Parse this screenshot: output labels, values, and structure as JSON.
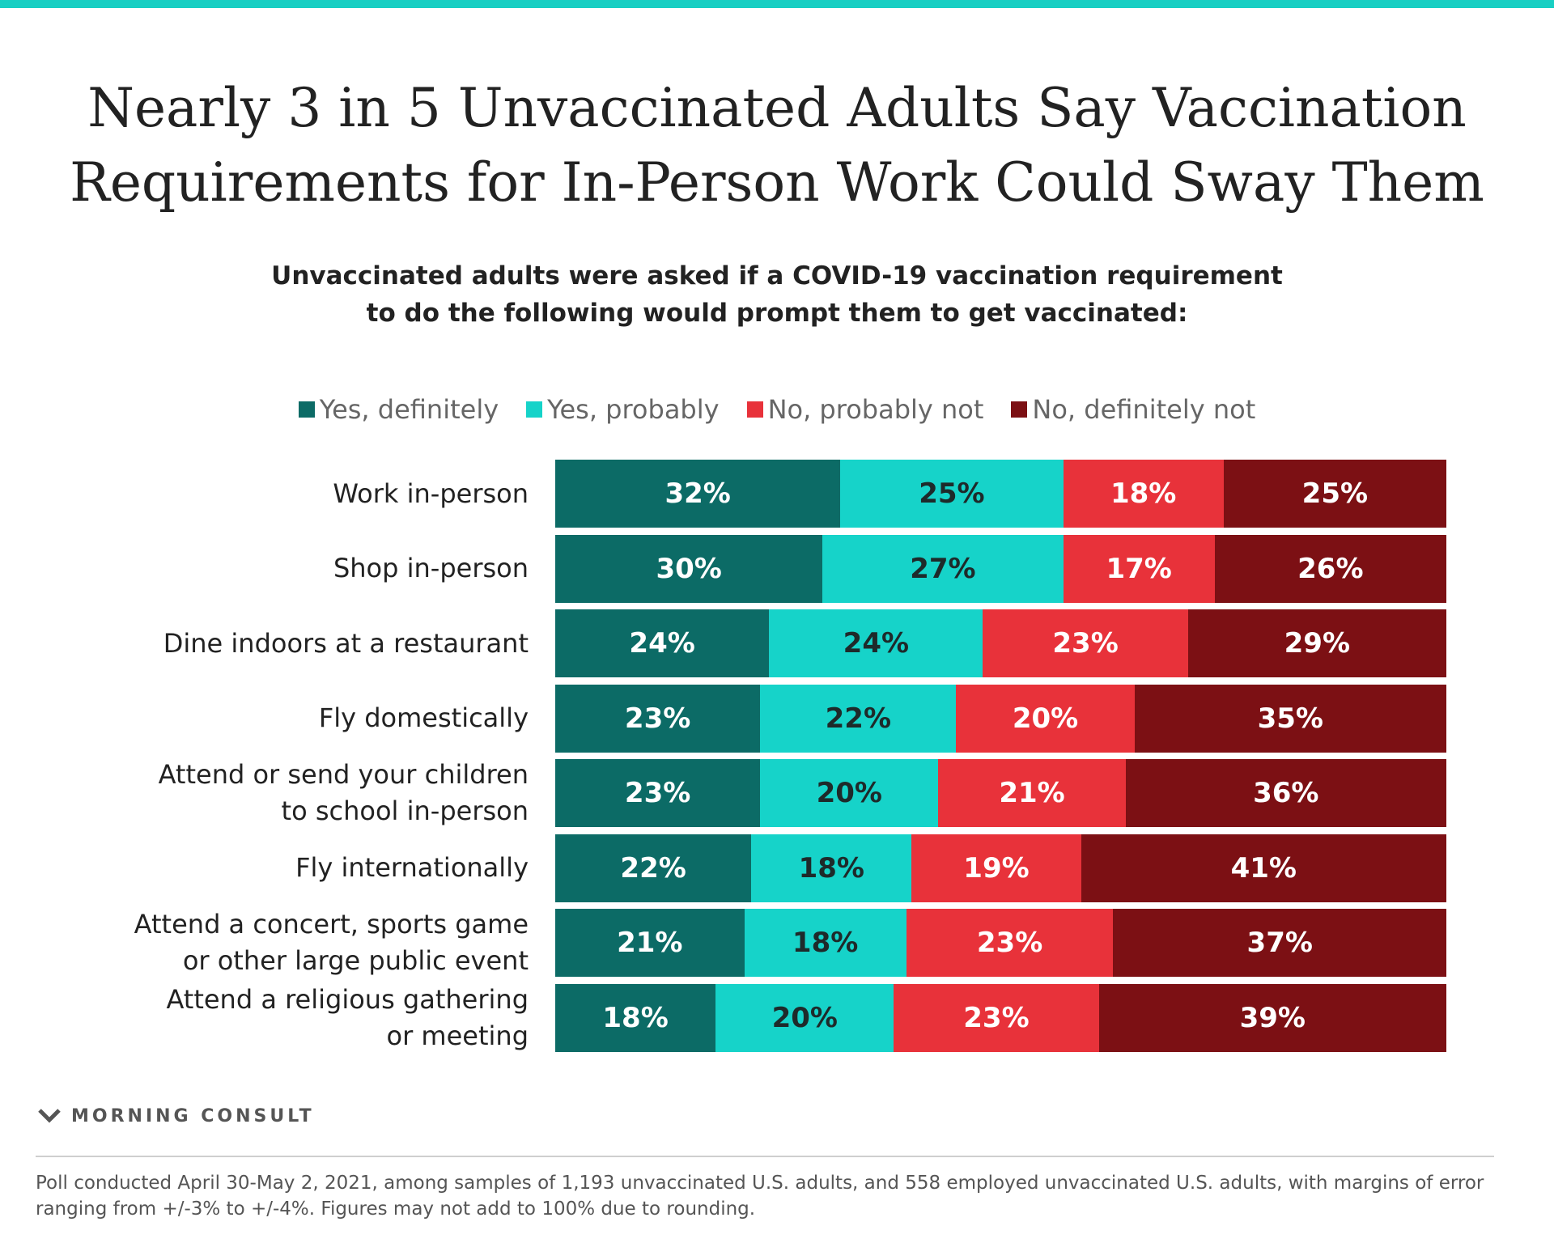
{
  "title": {
    "line1": "Nearly 3 in 5 Unvaccinated Adults Say Vaccination",
    "line2": "Requirements for In-Person Work Could Sway Them"
  },
  "subtitle": {
    "line1": "Unvaccinated adults were asked if a COVID-19 vaccination requirement",
    "line2": "to do the following would prompt them to get vaccinated:"
  },
  "colors": {
    "accent_bar": "#18cfc3",
    "yes_definitely": "#0c6b66",
    "yes_probably": "#16d3c9",
    "no_probably_not": "#e8323a",
    "no_definitely_not": "#7c1014"
  },
  "chart_data": {
    "type": "bar",
    "orientation": "horizontal",
    "stacked": true,
    "legend_placement": "top",
    "categories": [
      [
        "Work in-person"
      ],
      [
        "Shop in-person"
      ],
      [
        "Dine indoors at a restaurant"
      ],
      [
        "Fly domestically"
      ],
      [
        "Attend or send your children",
        "to school in-person"
      ],
      [
        "Fly internationally"
      ],
      [
        "Attend a concert, sports game",
        "or other large public event"
      ],
      [
        "Attend a religious gathering",
        "or meeting"
      ]
    ],
    "series": [
      {
        "name": "Yes, definitely",
        "color": "#0c6b66",
        "label_color": "#ffffff",
        "values": [
          32,
          30,
          24,
          23,
          23,
          22,
          21,
          18
        ]
      },
      {
        "name": "Yes, probably",
        "color": "#16d3c9",
        "label_color": "#1e2a2a",
        "values": [
          25,
          27,
          24,
          22,
          20,
          18,
          18,
          20
        ]
      },
      {
        "name": "No, probably not",
        "color": "#e8323a",
        "label_color": "#ffffff",
        "values": [
          18,
          17,
          23,
          20,
          21,
          19,
          23,
          23
        ]
      },
      {
        "name": "No, definitely not",
        "color": "#7c1014",
        "label_color": "#ffffff",
        "values": [
          25,
          26,
          29,
          35,
          36,
          41,
          37,
          39
        ]
      }
    ],
    "value_suffix": "%"
  },
  "footer": {
    "logo_text": "MORNING CONSULT",
    "note_line1": "Poll conducted April 30-May 2, 2021, among samples of 1,193 unvaccinated U.S. adults, and 558 employed unvaccinated U.S. adults, with margins of error",
    "note_line2": "ranging from +/-3% to +/-4%. Figures may not add to 100% due to rounding."
  }
}
